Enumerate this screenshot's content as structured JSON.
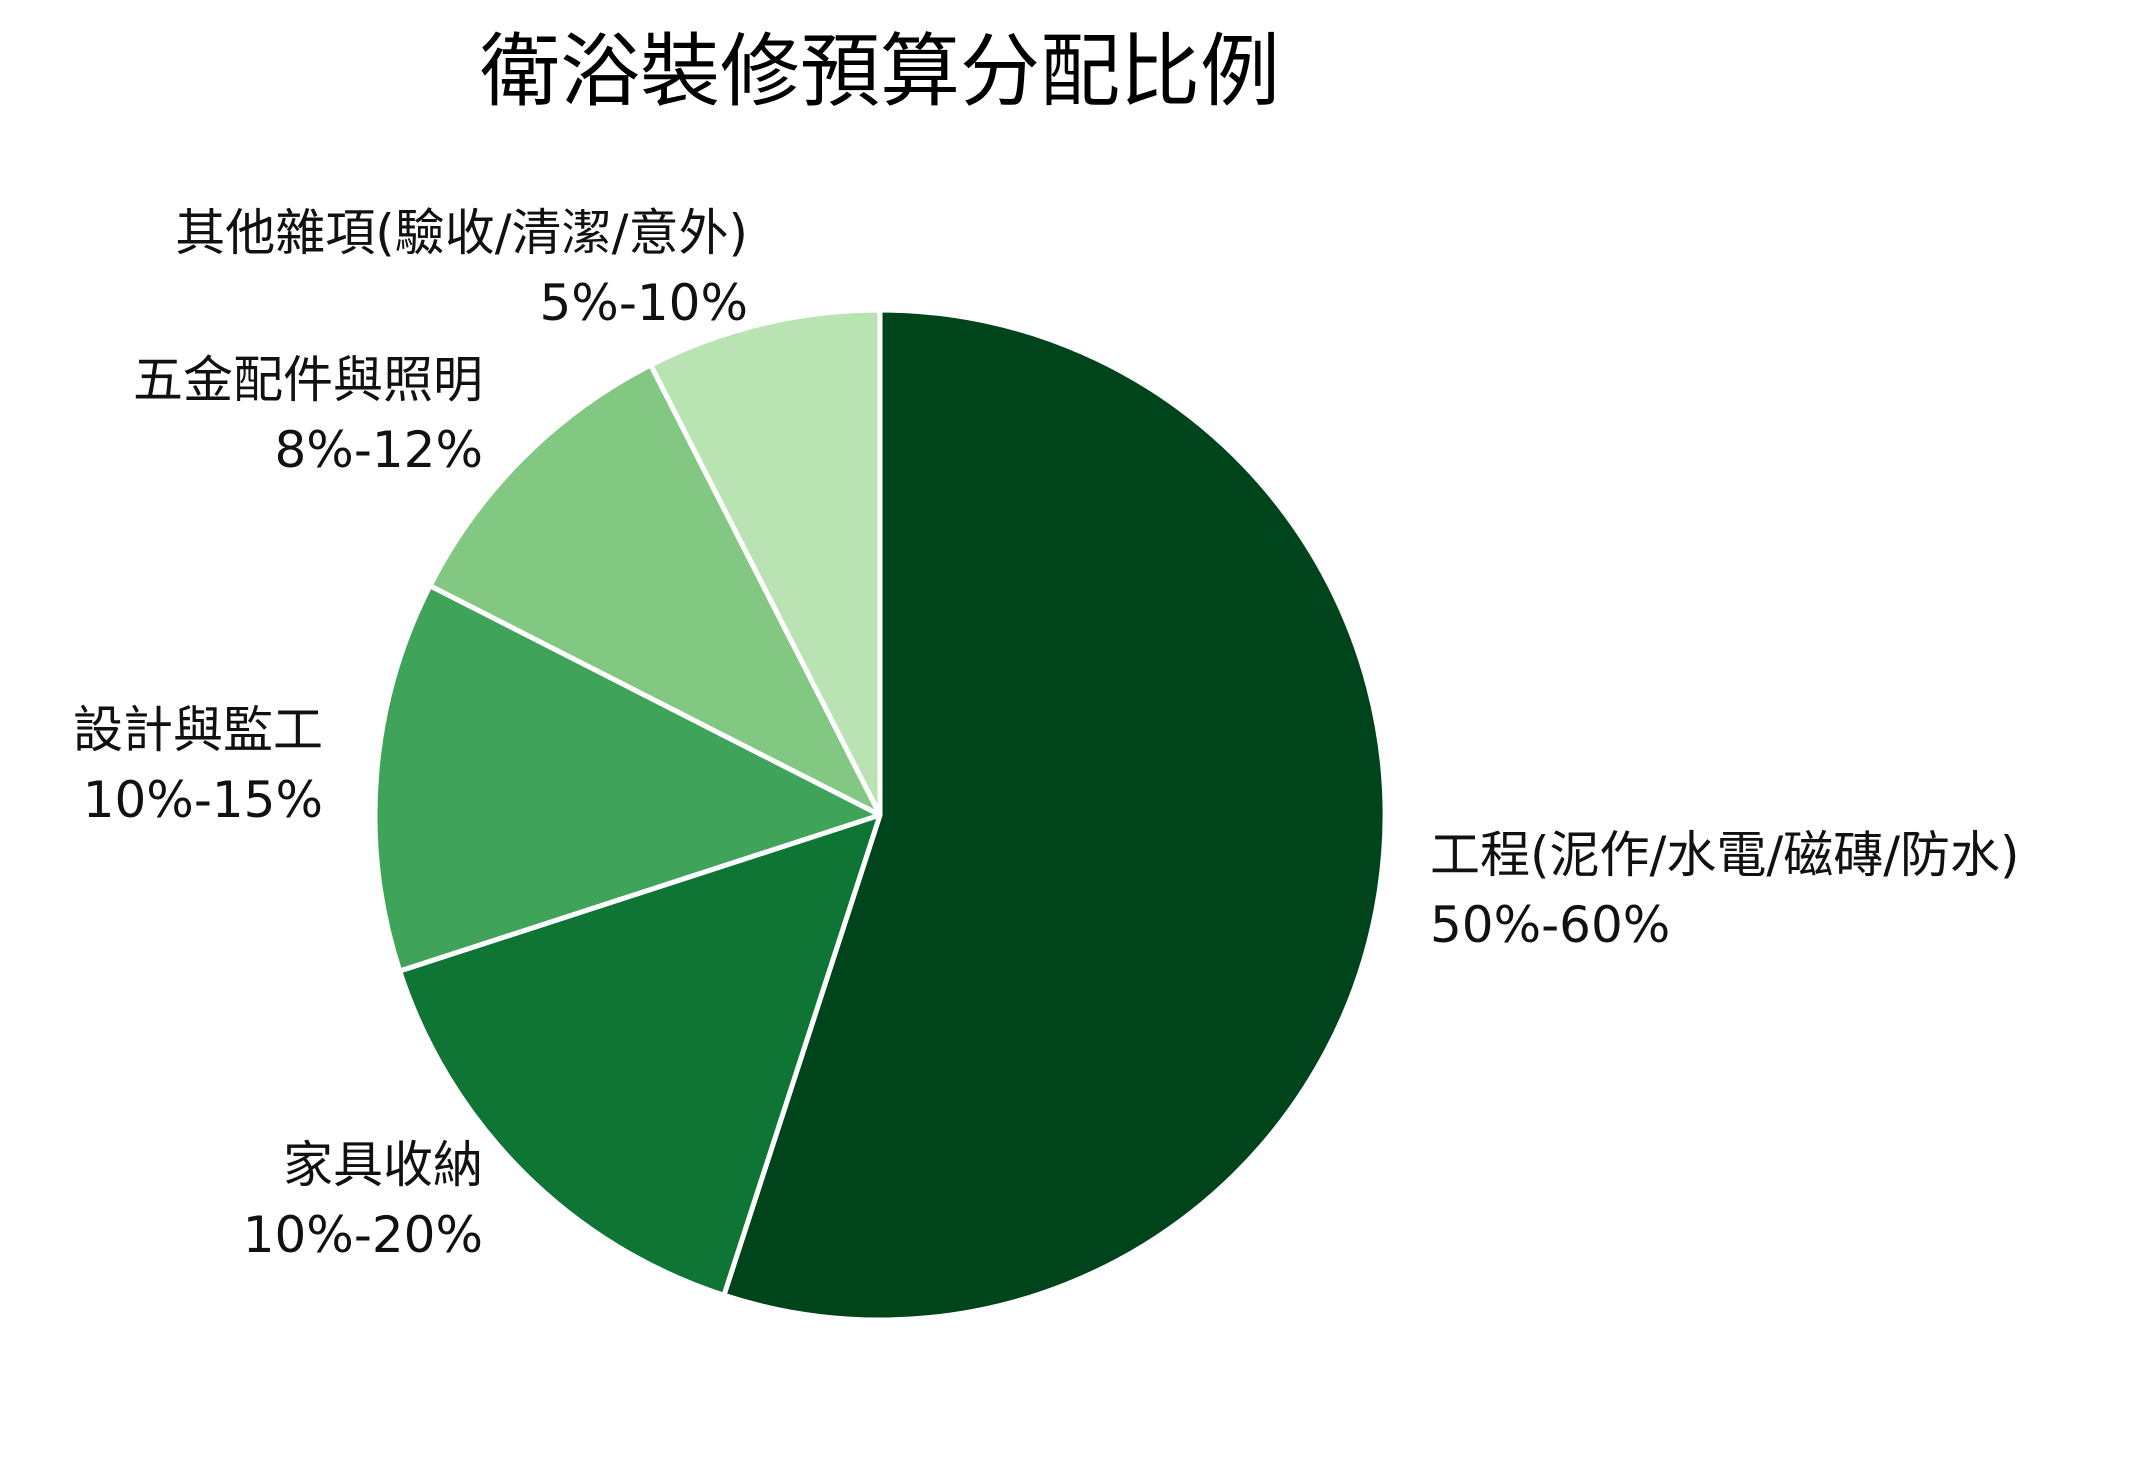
{
  "title": "衛浴裝修預算分配比例",
  "chart_data": {
    "type": "pie",
    "title": "衛浴裝修預算分配比例",
    "start_angle": "top (12 o'clock), clockwise",
    "slices": [
      {
        "label": "工程(泥作/水電/磁磚/防水)",
        "range": "50%-60%",
        "value": 55,
        "color": "#00441b"
      },
      {
        "label": "家具收納",
        "range": "10%-20%",
        "value": 15,
        "color": "#0e7535"
      },
      {
        "label": "設計與監工",
        "range": "10%-15%",
        "value": 12.5,
        "color": "#3fa45a"
      },
      {
        "label": "五金配件與照明",
        "range": "8%-12%",
        "value": 10,
        "color": "#82c882"
      },
      {
        "label": "其他雜項(驗收/清潔/意外)",
        "range": "5%-10%",
        "value": 7.5,
        "color": "#b9e3b3"
      }
    ],
    "legend": "none (labels placed outside slices)",
    "slice_separator_color": "#ffffff"
  },
  "labels": {
    "engineering": {
      "name": "工程(泥作/水電/磁磚/防水)",
      "range": "50%-60%"
    },
    "furniture": {
      "name": "家具收納",
      "range": "10%-20%"
    },
    "design": {
      "name": "設計與監工",
      "range": "10%-15%"
    },
    "hardware": {
      "name": "五金配件與照明",
      "range": "8%-12%"
    },
    "misc": {
      "name": "其他雜項(驗收/清潔/意外)",
      "range": "5%-10%"
    }
  }
}
